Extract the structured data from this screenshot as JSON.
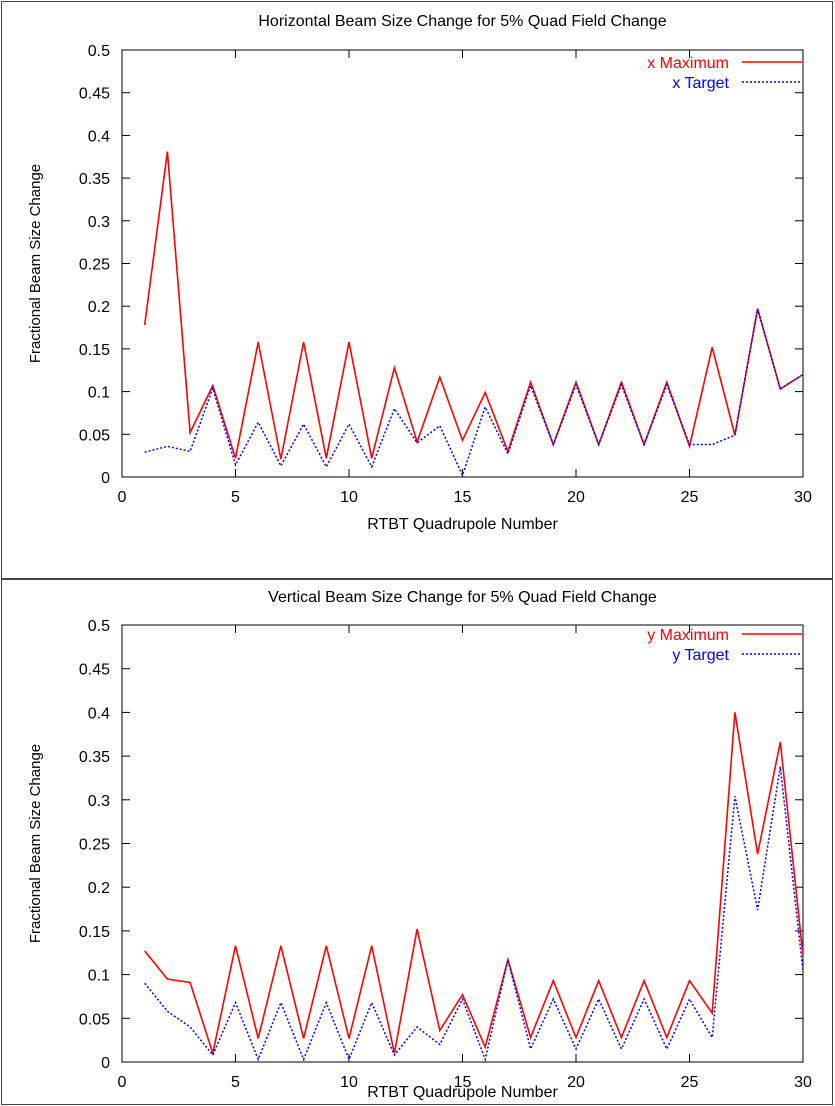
{
  "chart_data": [
    {
      "type": "line",
      "title": "Horizontal Beam Size Change for 5% Quad Field Change",
      "xlabel": "RTBT Quadrupole Number",
      "ylabel": "Fractional Beam Size Change",
      "xlim": [
        0,
        30
      ],
      "ylim": [
        0,
        0.5
      ],
      "xticks": [
        "0",
        "5",
        "10",
        "15",
        "20",
        "25",
        "30"
      ],
      "yticks": [
        "0",
        "0.05",
        "0.1",
        "0.15",
        "0.2",
        "0.25",
        "0.3",
        "0.35",
        "0.4",
        "0.45",
        "0.5"
      ],
      "legend_position": "top-right",
      "grid": false,
      "x": [
        1,
        2,
        3,
        4,
        5,
        6,
        7,
        8,
        9,
        10,
        11,
        12,
        13,
        14,
        15,
        16,
        17,
        18,
        19,
        20,
        21,
        22,
        23,
        24,
        25,
        26,
        27,
        28,
        29,
        30
      ],
      "series": [
        {
          "name": "x Maximum",
          "color": "#ff0000",
          "style": "solid",
          "values": [
            0.178,
            0.381,
            0.052,
            0.107,
            0.022,
            0.158,
            0.021,
            0.158,
            0.022,
            0.158,
            0.022,
            0.128,
            0.041,
            0.117,
            0.043,
            0.099,
            0.03,
            0.111,
            0.038,
            0.111,
            0.038,
            0.111,
            0.038,
            0.111,
            0.036,
            0.152,
            0.049,
            0.197,
            0.103,
            0.12
          ]
        },
        {
          "name": "x Target",
          "color": "#0000ff",
          "style": "dotted",
          "values": [
            0.029,
            0.036,
            0.03,
            0.104,
            0.014,
            0.064,
            0.013,
            0.062,
            0.012,
            0.062,
            0.012,
            0.08,
            0.04,
            0.06,
            0.002,
            0.082,
            0.027,
            0.107,
            0.038,
            0.108,
            0.038,
            0.108,
            0.038,
            0.108,
            0.038,
            0.038,
            0.049,
            0.197,
            0.103,
            0.12
          ]
        }
      ]
    },
    {
      "type": "line",
      "title": "Vertical Beam Size Change for 5% Quad Field Change",
      "xlabel": "RTBT Quadrupole Number",
      "ylabel": "Fractional Beam Size Change",
      "xlim": [
        0,
        30
      ],
      "ylim": [
        0,
        0.5
      ],
      "xticks": [
        "0",
        "5",
        "10",
        "15",
        "20",
        "25",
        "30"
      ],
      "yticks": [
        "0",
        "0.05",
        "0.1",
        "0.15",
        "0.2",
        "0.25",
        "0.3",
        "0.35",
        "0.4",
        "0.45",
        "0.5"
      ],
      "legend_position": "top-right",
      "grid": false,
      "x": [
        1,
        2,
        3,
        4,
        5,
        6,
        7,
        8,
        9,
        10,
        11,
        12,
        13,
        14,
        15,
        16,
        17,
        18,
        19,
        20,
        21,
        22,
        23,
        24,
        25,
        26,
        27,
        28,
        29,
        30
      ],
      "series": [
        {
          "name": "y Maximum",
          "color": "#ff0000",
          "style": "solid",
          "values": [
            0.127,
            0.095,
            0.091,
            0.01,
            0.133,
            0.027,
            0.133,
            0.027,
            0.133,
            0.027,
            0.133,
            0.01,
            0.152,
            0.036,
            0.077,
            0.017,
            0.117,
            0.028,
            0.093,
            0.028,
            0.093,
            0.028,
            0.093,
            0.028,
            0.093,
            0.056,
            0.4,
            0.238,
            0.366,
            0.122
          ]
        },
        {
          "name": "y Target",
          "color": "#0000ff",
          "style": "dotted",
          "values": [
            0.09,
            0.058,
            0.04,
            0.008,
            0.068,
            0.003,
            0.068,
            0.003,
            0.068,
            0.003,
            0.068,
            0.008,
            0.04,
            0.02,
            0.072,
            0.003,
            0.117,
            0.015,
            0.072,
            0.015,
            0.072,
            0.015,
            0.072,
            0.015,
            0.072,
            0.028,
            0.304,
            0.174,
            0.338,
            0.104
          ]
        }
      ]
    }
  ]
}
